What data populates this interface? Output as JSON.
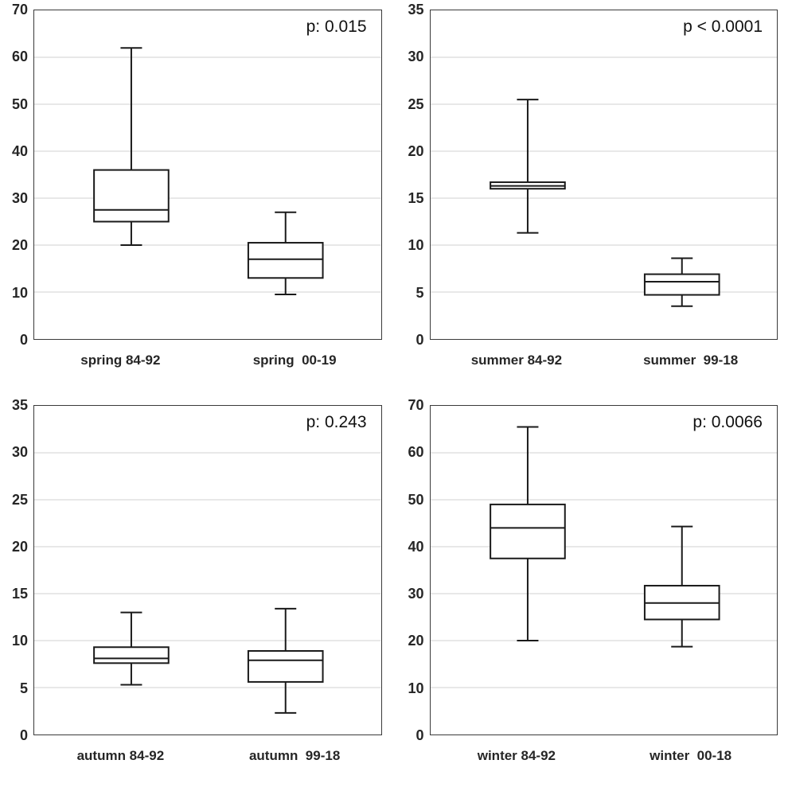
{
  "palette": {
    "box_stroke": "#1a1a1a",
    "box_fill": "#ffffff",
    "gridline": "#d9d9d9",
    "frame": "#3a3a3a",
    "text": "#262626"
  },
  "chart_data": [
    {
      "type": "boxplot",
      "p_label": "p: 0.015",
      "categories": [
        "spring 84-92",
        "spring  00-19"
      ],
      "ylim": [
        0,
        70
      ],
      "ytick_step": 10,
      "grid": true,
      "series": [
        {
          "name": "spring 84-92",
          "whisker_low": 20,
          "q1": 25,
          "median": 27.5,
          "q3": 36,
          "whisker_high": 62
        },
        {
          "name": "spring 00-19",
          "whisker_low": 9.5,
          "q1": 13,
          "median": 17,
          "q3": 20.5,
          "whisker_high": 27
        }
      ]
    },
    {
      "type": "boxplot",
      "p_label": "p < 0.0001",
      "categories": [
        "summer 84-92",
        "summer  99-18"
      ],
      "ylim": [
        0,
        35
      ],
      "ytick_step": 5,
      "grid": true,
      "series": [
        {
          "name": "summer 84-92",
          "whisker_low": 11.3,
          "q1": 16,
          "median": 16.3,
          "q3": 16.7,
          "whisker_high": 25.5
        },
        {
          "name": "summer 99-18",
          "whisker_low": 3.5,
          "q1": 4.7,
          "median": 6.1,
          "q3": 6.9,
          "whisker_high": 8.6
        }
      ]
    },
    {
      "type": "boxplot",
      "p_label": "p: 0.243",
      "categories": [
        "autumn 84-92",
        "autumn  99-18"
      ],
      "ylim": [
        0,
        35
      ],
      "ytick_step": 5,
      "grid": true,
      "series": [
        {
          "name": "autumn 84-92",
          "whisker_low": 5.3,
          "q1": 7.6,
          "median": 8.1,
          "q3": 9.3,
          "whisker_high": 13
        },
        {
          "name": "autumn 99-18",
          "whisker_low": 2.3,
          "q1": 5.6,
          "median": 7.9,
          "q3": 8.9,
          "whisker_high": 13.4
        }
      ]
    },
    {
      "type": "boxplot",
      "p_label": "p: 0.0066",
      "categories": [
        "winter 84-92",
        "winter  00-18"
      ],
      "ylim": [
        0,
        70
      ],
      "ytick_step": 10,
      "grid": true,
      "series": [
        {
          "name": "winter 84-92",
          "whisker_low": 20,
          "q1": 37.5,
          "median": 44,
          "q3": 49,
          "whisker_high": 65.5
        },
        {
          "name": "winter 00-18",
          "whisker_low": 18.7,
          "q1": 24.5,
          "median": 28,
          "q3": 31.7,
          "whisker_high": 44.3
        }
      ]
    }
  ]
}
